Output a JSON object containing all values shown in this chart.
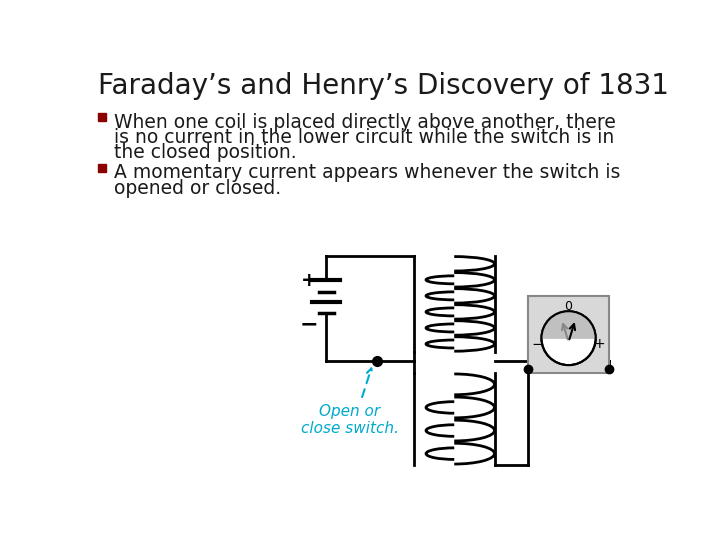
{
  "title": "Faraday’s and Henry’s Discovery of 1831",
  "title_fontsize": 20,
  "title_color": "#1a1a1a",
  "bullet_color": "#8B0000",
  "text_color": "#1a1a1a",
  "bullet1_line1": "When one coil is placed directly above another, there",
  "bullet1_line2": "is no current in the lower circuit while the switch is in",
  "bullet1_line3": "the closed position.",
  "bullet2_line1": "A momentary current appears whenever the switch is",
  "bullet2_line2": "opened or closed.",
  "annotation_text": "Open or\nclose switch.",
  "annotation_color": "#00AACC",
  "bg_color": "#ffffff",
  "text_fontsize": 13.5,
  "lw": 2.0,
  "black": "#000000"
}
